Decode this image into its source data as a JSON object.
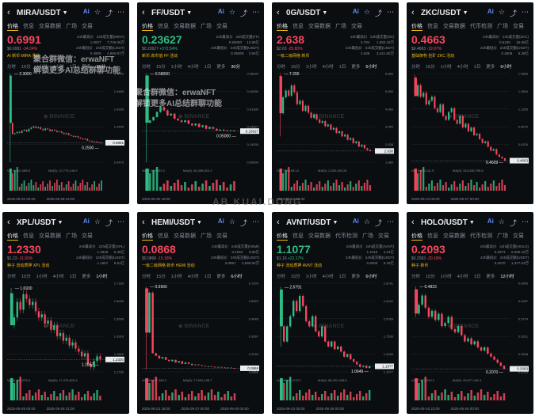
{
  "watermark_center": "AB KUAI.DONG",
  "ad_overlay": {
    "line1": "聚合群微信：erwaNFT",
    "line2": "解锁更多AI总结群聊功能"
  },
  "binance_mark": "BINANCE",
  "tabs_short": [
    "价格",
    "信息",
    "交易数据",
    "广场",
    "交易"
  ],
  "tabs_long": [
    "价格",
    "信息",
    "交易数据",
    "代币检测",
    "广场",
    "交易"
  ],
  "timeframes": [
    "分时",
    "15分",
    "1小时",
    "4小时",
    "1日",
    "更多"
  ],
  "panels": [
    {
      "symbol": "MIRA/USDT",
      "price": "0.6991",
      "trend": "down",
      "sub_price": "$0.6991",
      "change": "-34.04%",
      "tags": "AI  新币  MIRA 活动",
      "stats": "24h最高价   24h成交量(MIRA)\n1.0827      7,746.06万\n24h最低价   24h成交额(USDT)\n0.4909      4,860.97万",
      "active_tf": "15分",
      "high_label": "2.3000",
      "low_label": "0.2500",
      "last_label": "0.6991",
      "axis": [
        "2.3000",
        "1.9465",
        "1.6935",
        "1.3405",
        "0.6801",
        "0.3475"
      ],
      "vol_label": "Vol: 5,661,088.5",
      "ma_label": "MA(5): 12,773,146.9",
      "dates": [
        "2025-09-26 20:00",
        "2025-09-28 04:00"
      ],
      "closes": [
        0.9,
        0.92,
        0.95,
        0.93,
        0.98,
        1.0,
        0.96,
        1.02,
        1.05,
        1.08,
        1.04,
        1.06,
        1.02,
        0.99,
        1.03,
        1.01,
        0.97,
        1.0,
        0.98,
        0.95,
        0.96,
        0.93,
        0.9,
        0.92,
        0.88,
        0.86,
        0.84,
        0.85,
        0.82,
        0.8,
        0.78,
        0.79,
        0.75,
        0.74,
        0.72,
        0.73,
        0.71,
        0.7,
        0.7
      ],
      "spike": {
        "high": 2.3,
        "low": 0.25
      },
      "y_range": [
        0.25,
        2.3
      ]
    },
    {
      "symbol": "FF/USDT",
      "price": "0.23627",
      "trend": "up",
      "sub_price": "$0.23627",
      "change": "+372.54%",
      "tags": "新币  高市值  FF 活动",
      "stats": "24h最高价   24h成交量(FF)\n0.58000     12.95亿\n24h最低价   24h成交额(USDT)\n0.05000     3.56亿",
      "active_tf": "30分",
      "high_label": "0.58000",
      "low_label": "0.05000",
      "last_label": "0.23627",
      "axis": [
        "0.48930",
        "0.40530",
        "0.31930",
        "0.23627",
        "0.14930",
        "0.05000"
      ],
      "vol_label": "Vol: 7,063,653.2",
      "ma_label": "MA(5): 30,498,823.2",
      "dates": [
        "2025-09-29 10:00"
      ],
      "closes": [
        0.3,
        0.32,
        0.35,
        0.38,
        0.36,
        0.33,
        0.34,
        0.31,
        0.3,
        0.29,
        0.3,
        0.28,
        0.27,
        0.28,
        0.26,
        0.27,
        0.25,
        0.26,
        0.25,
        0.24,
        0.245,
        0.24,
        0.238,
        0.24,
        0.236
      ],
      "spike": {
        "high": 0.58,
        "low": 0.05
      },
      "y_range": [
        0.05,
        0.58
      ]
    },
    {
      "symbol": "0G/USDT",
      "price": "2.638",
      "trend": "down",
      "sub_price": "$2.63",
      "change": "-25.80%",
      "tags": "一级二级网络  新币",
      "stats": "24h最高价   24h成交量(0G)\n3.794       1,092.18万\n24h最低价   24h成交额(USDT)\n2.638       3,441.50万",
      "active_tf": "6小时",
      "high_label": "7.200",
      "low_label": "",
      "last_label": "2.638",
      "axis": [
        "6.880",
        "5.950",
        "4.960",
        "3.960",
        "2.638",
        "1.980"
      ],
      "vol_label": "Vol: 773,109.14",
      "ma_label": "MA(5): 2,320,493.26",
      "dates": [
        "2025-09-24 16:00"
      ],
      "closes": [
        5.8,
        6.2,
        5.9,
        6.5,
        6.1,
        5.4,
        5.6,
        5.0,
        5.3,
        4.9,
        4.6,
        4.8,
        4.5,
        4.3,
        4.4,
        4.1,
        4.2,
        3.9,
        4.0,
        3.7,
        3.8,
        3.5,
        3.6,
        3.3,
        3.4,
        3.1,
        3.2,
        2.9,
        3.0,
        2.8,
        2.7,
        2.64
      ],
      "spike": {
        "high": 7.2,
        "low": 3.5
      },
      "y_range": [
        1.98,
        7.2
      ]
    },
    {
      "symbol": "ZKC/USDT",
      "price": "0.4663",
      "trend": "down",
      "sub_price": "$0.4663",
      "change": "-19.97%",
      "tags": "基础架构  挖矿  ZKC 活动",
      "stats": "24h最高价   24h成交量(ZKC)\n0.6155      15.06亿\n24h最低价   24h成交额(USDT)\n0.4609      8.39亿",
      "active_tf": "6小时",
      "high_label": "",
      "low_label": "0.4609",
      "last_label": "0.4663",
      "axis": [
        "1.5806",
        "1.3500",
        "1.1250",
        "0.8970",
        "0.6700",
        "0.4663"
      ],
      "vol_label": "Vol: 5,856,111.5",
      "ma_label": "MA(5): 316,336,796.6",
      "dates": [
        "2025-09-23 06:00",
        "2025-09-27 00:00"
      ],
      "closes": [
        1.45,
        1.3,
        1.35,
        1.2,
        1.25,
        1.3,
        1.15,
        1.1,
        1.2,
        1.05,
        1.0,
        1.1,
        1.15,
        1.0,
        0.95,
        1.05,
        0.9,
        0.95,
        0.85,
        0.9,
        0.8,
        0.82,
        0.75,
        0.7,
        0.72,
        0.65,
        0.6,
        0.62,
        0.55,
        0.52,
        0.5,
        0.47
      ],
      "spike": {
        "high": 1.58,
        "low": 1.3
      },
      "y_range": [
        0.45,
        1.6
      ]
    },
    {
      "symbol": "XPL/USDT",
      "price": "1.2330",
      "trend": "down",
      "sub_price": "$1.23",
      "change": "-11.93%",
      "tags": "种子  流动质押  XPL 活动",
      "stats": "24h最高价   24h成交量(XPL)\n1.4948      5.46亿\n24h最低价   24h成交额(USDT)\n1.1667      6.91亿",
      "active_tf": "1小时",
      "high_label": "1.6930",
      "low_label": "1.1667",
      "last_label": "1.2330",
      "axis": [
        "1.7189",
        "1.6099",
        "1.5009",
        "1.3919",
        "1.2829",
        "1.1739"
      ],
      "vol_label": "Vol: 4,169,276.0",
      "ma_label": "MA(5): 17,473,620.9",
      "dates": [
        "2025-09-29 00:00",
        "2025-09-29 21:00"
      ],
      "closes": [
        1.5,
        1.6,
        1.55,
        1.65,
        1.62,
        1.58,
        1.6,
        1.54,
        1.5,
        1.52,
        1.46,
        1.48,
        1.42,
        1.45,
        1.38,
        1.4,
        1.35,
        1.37,
        1.32,
        1.34,
        1.3,
        1.28,
        1.25,
        1.27,
        1.2,
        1.18,
        1.22,
        1.25,
        1.23
      ],
      "spike": {
        "high": 1.69,
        "low": 1.5
      },
      "y_range": [
        1.15,
        1.72
      ]
    },
    {
      "symbol": "HEMI/USDT",
      "price": "0.0868",
      "trend": "down",
      "sub_price": "$0.0868",
      "change": "-15.18%",
      "tags": "一级二级网络  新币  HEMI 活动",
      "stats": "24h最高价   24h成交量(HEMI)\n0.1063      3.96亿\n24h最低价   24h成交额(USDT)\n0.0857      3,599.93万",
      "active_tf": "6小时",
      "high_label": "0.6960",
      "low_label": "",
      "last_label": "0.0868",
      "axis": [
        "0.7200",
        "0.5922",
        "0.4645",
        "0.3367",
        "0.2090",
        "0.0868"
      ],
      "vol_label": "Vol: 43,197,360.2",
      "ma_label": "MA(5): 77,630,138.7",
      "dates": [
        "2025-09-23 18:00",
        "2025-09-27 00:00",
        "2025-09-30 00:00"
      ],
      "closes": [
        0.65,
        0.2,
        0.18,
        0.16,
        0.17,
        0.15,
        0.14,
        0.15,
        0.13,
        0.14,
        0.12,
        0.13,
        0.12,
        0.11,
        0.115,
        0.11,
        0.105,
        0.1,
        0.102,
        0.098,
        0.095,
        0.097,
        0.093,
        0.09,
        0.092,
        0.088,
        0.087
      ],
      "spike": {
        "high": 0.696,
        "low": 0.08
      },
      "y_range": [
        0.06,
        0.72
      ]
    },
    {
      "symbol": "AVNT/USDT",
      "price": "1.1077",
      "trend": "up",
      "sub_price": "$1.10",
      "change": "+21.17%",
      "tags": "种子  流动质押  AVNT 活动",
      "stats": "24h最高价   24h成交量(AVNT)\n1.4416      4.31亿\n24h最低价   24h成交额(USDT)\n0.9000      5.19亿",
      "active_tf": "6小时",
      "high_label": "2.6791",
      "low_label": "1.0649",
      "last_label": "1.1077",
      "axis": [
        "2.6791",
        "2.4042",
        "2.0789",
        "1.7536",
        "1.4283",
        "1.1077"
      ],
      "vol_label": "Vol: 40,567,270.7",
      "ma_label": "MA(5): 88,202,428.8",
      "dates": [
        "2025-09-23 00:00",
        "2025-09-28 00:00"
      ],
      "closes": [
        1.6,
        1.9,
        2.1,
        2.4,
        2.2,
        2.5,
        2.3,
        2.0,
        1.9,
        2.1,
        1.8,
        1.7,
        1.9,
        1.6,
        1.5,
        1.6,
        1.45,
        1.5,
        1.4,
        1.3,
        1.35,
        1.25,
        1.2,
        1.15,
        1.1,
        1.12,
        1.08,
        1.11
      ],
      "spike": {
        "high": 2.68,
        "low": 1.5
      },
      "y_range": [
        1.0,
        2.75
      ]
    },
    {
      "symbol": "HOLO/USDT",
      "price": "0.2093",
      "trend": "down",
      "sub_price": "$0.2093",
      "change": "-20.18%",
      "tags": "种子  新币",
      "stats": "24h最高价   24h成交量(HOLO)\n0.2673      6,096.15万\n24h最低价   24h成交额(USDT)\n0.2070      1,377.03万",
      "active_tf": "12小时",
      "high_label": "0.4823",
      "low_label": "0.2070",
      "last_label": "0.2093",
      "axis": [
        "0.4900",
        "0.4337",
        "0.3774",
        "0.3211",
        "0.2648",
        "0.2093"
      ],
      "vol_label": "Vol: 7,271,243.2",
      "ma_label": "MA(5): 20,677,442.4",
      "dates": [
        "2025-09-15 22:00",
        "2025-09-26 00:00"
      ],
      "closes": [
        0.42,
        0.45,
        0.41,
        0.38,
        0.4,
        0.37,
        0.39,
        0.35,
        0.36,
        0.38,
        0.34,
        0.33,
        0.35,
        0.32,
        0.3,
        0.31,
        0.29,
        0.3,
        0.28,
        0.27,
        0.28,
        0.26,
        0.25,
        0.24,
        0.23,
        0.22,
        0.21
      ],
      "spike": {
        "high": 0.48,
        "low": 0.38
      },
      "y_range": [
        0.2,
        0.49
      ]
    }
  ]
}
